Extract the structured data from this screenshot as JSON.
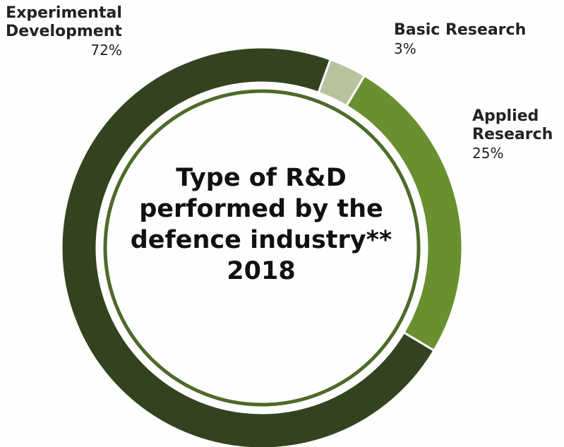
{
  "chart_data": {
    "type": "pie",
    "style": "donut",
    "title_lines": [
      "Type of R&D",
      "performed by the",
      "defence industry**",
      "2018"
    ],
    "slices": [
      {
        "name": "Basic Research",
        "value": 3,
        "label": "3%",
        "color": "#b7c39e"
      },
      {
        "name": "Applied Research",
        "value": 25,
        "label": "25%",
        "color": "#6a8f2e"
      },
      {
        "name": "Experimental Development",
        "value": 72,
        "label": "72%",
        "color": "#34431f"
      }
    ]
  },
  "labels": {
    "experimental": {
      "line1": "Experimental",
      "line2": "Development",
      "pct": "72%"
    },
    "basic": {
      "line1": "Basic Research",
      "pct": "3%"
    },
    "applied": {
      "line1": "Applied",
      "line2": "Research",
      "pct": "25%"
    }
  },
  "colors": {
    "inner_ring": "#4e6a2a",
    "background": "#fefefe"
  }
}
